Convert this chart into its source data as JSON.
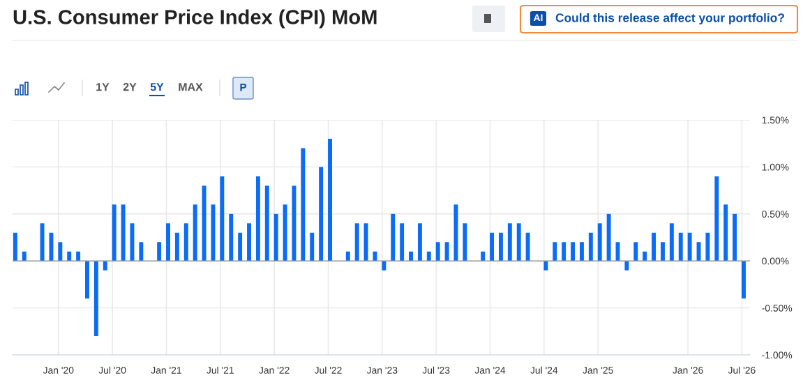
{
  "chart_data": {
    "type": "bar",
    "title": "U.S. Consumer Price Index (CPI) MoM",
    "categories": [
      null,
      null,
      null,
      null,
      null,
      "Jan '20",
      null,
      null,
      null,
      null,
      null,
      "Jul '20",
      null,
      null,
      null,
      null,
      null,
      "Jan '21",
      null,
      null,
      null,
      null,
      null,
      "Jul '21",
      null,
      null,
      null,
      null,
      null,
      "Jan '22",
      null,
      null,
      null,
      null,
      null,
      "Jul '22",
      null,
      null,
      null,
      null,
      null,
      "Jan '23",
      null,
      null,
      null,
      null,
      null,
      "Jul '23",
      null,
      null,
      null,
      null,
      null,
      "Jan '24",
      null,
      null,
      null,
      null,
      null,
      "Jul '24",
      null,
      null,
      null,
      null,
      null,
      "Jan '25",
      null,
      null,
      null,
      null,
      null,
      null,
      null,
      null,
      null,
      "Jan '26",
      null,
      null,
      null,
      null,
      null,
      "Jul '26"
    ],
    "values": [
      0.3,
      0.1,
      0,
      0.4,
      0.3,
      0.2,
      0.1,
      0.1,
      -0.4,
      -0.8,
      -0.1,
      0.6,
      0.6,
      0.4,
      0.2,
      0,
      0.2,
      0.4,
      0.3,
      0.4,
      0.6,
      0.8,
      0.6,
      0.9,
      0.5,
      0.3,
      0.4,
      0.9,
      0.8,
      0.5,
      0.6,
      0.8,
      1.2,
      0.3,
      1.0,
      1.3,
      0,
      0.1,
      0.4,
      0.4,
      0.1,
      -0.1,
      0.5,
      0.4,
      0.1,
      0.4,
      0.1,
      0.2,
      0.2,
      0.6,
      0.4,
      0,
      0.1,
      0.3,
      0.3,
      0.4,
      0.4,
      0.3,
      0,
      -0.1,
      0.2,
      0.2,
      0.2,
      0.2,
      0.3,
      0.4,
      0.5,
      0.2,
      -0.1,
      0.2,
      0.1,
      0.3,
      0.2,
      0.4,
      0.3,
      0.3,
      0.2,
      0.3,
      0.9,
      0.6,
      0.5,
      -0.4
    ],
    "color": "#0a6cf7",
    "ylim": [
      -1.0,
      1.5
    ],
    "yticks": [
      {
        "value": -1.0,
        "label": "-1.00%"
      },
      {
        "value": -0.5,
        "label": "-0.50%"
      },
      {
        "value": 0,
        "label": "0.00%"
      },
      {
        "value": 0.5,
        "label": "0.50%"
      },
      {
        "value": 1.0,
        "label": "1.00%"
      },
      {
        "value": 1.5,
        "label": "1.50%"
      }
    ],
    "grid": true,
    "annotations": [
      "AI",
      "Could this release affect your portfolio?",
      "1Y",
      "2Y",
      "5Y",
      "MAX",
      "P"
    ]
  }
}
